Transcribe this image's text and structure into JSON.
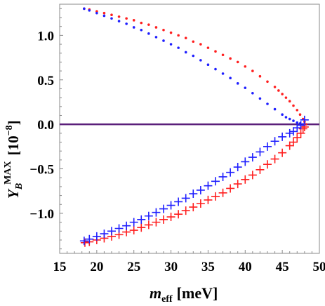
{
  "chart_data": {
    "type": "scatter",
    "title": "",
    "xlabel": {
      "main": "m",
      "subscript": "eff",
      "unit": "[meV]"
    },
    "ylabel": {
      "main": "Y",
      "subscript": "B",
      "superscript": "MAX",
      "unit": "[10",
      "unit_exponent": "−8",
      "unit_close": "]"
    },
    "xlim": [
      15,
      50
    ],
    "ylim": [
      -1.45,
      1.35
    ],
    "xticks": [
      "15",
      "20",
      "25",
      "30",
      "35",
      "40",
      "45",
      "50"
    ],
    "xtick_values": [
      15,
      20,
      25,
      30,
      35,
      40,
      45,
      50
    ],
    "yticks": [
      "1.0",
      "0.5",
      "0.0",
      "−0.5",
      "−1.0"
    ],
    "ytick_values": [
      1.0,
      0.5,
      0.0,
      -0.5,
      -1.0
    ],
    "reference_line": {
      "y": 0.0,
      "color": "#5b1f7a"
    },
    "grid": false,
    "legend": "none",
    "series": [
      {
        "marker": "dot",
        "color": "#ff1f1f",
        "x": [
          18.3,
          19.0,
          20.0,
          21.0,
          22.0,
          23.0,
          24.0,
          25.0,
          26.0,
          27.0,
          28.0,
          29.0,
          30.0,
          31.0,
          32.0,
          33.0,
          34.0,
          35.0,
          36.0,
          37.0,
          38.0,
          39.0,
          40.0,
          41.0,
          42.0,
          43.0,
          44.0,
          44.5,
          45.0,
          45.5,
          46.0,
          46.5,
          47.0,
          47.4,
          47.8,
          48.0,
          48.2
        ],
        "y": [
          1.3,
          1.29,
          1.27,
          1.25,
          1.23,
          1.21,
          1.19,
          1.17,
          1.14,
          1.12,
          1.09,
          1.06,
          1.03,
          1.0,
          0.97,
          0.93,
          0.9,
          0.86,
          0.82,
          0.78,
          0.74,
          0.7,
          0.65,
          0.6,
          0.54,
          0.48,
          0.42,
          0.38,
          0.34,
          0.3,
          0.26,
          0.21,
          0.16,
          0.11,
          0.06,
          0.03,
          0.0
        ]
      },
      {
        "marker": "dot",
        "color": "#1f1fff",
        "x": [
          18.3,
          19.0,
          20.0,
          21.0,
          22.0,
          23.0,
          24.0,
          25.0,
          26.0,
          27.0,
          28.0,
          29.0,
          30.0,
          31.0,
          32.0,
          33.0,
          34.0,
          35.0,
          36.0,
          37.0,
          38.0,
          39.0,
          40.0,
          41.0,
          42.0,
          43.0,
          44.0,
          45.0,
          45.5,
          46.0,
          46.5,
          47.0,
          47.4,
          47.8,
          48.0
        ],
        "y": [
          1.3,
          1.28,
          1.25,
          1.22,
          1.19,
          1.16,
          1.13,
          1.09,
          1.06,
          1.02,
          0.98,
          0.94,
          0.9,
          0.86,
          0.81,
          0.77,
          0.72,
          0.67,
          0.62,
          0.57,
          0.52,
          0.46,
          0.41,
          0.35,
          0.29,
          0.23,
          0.17,
          0.11,
          0.08,
          0.06,
          0.04,
          0.02,
          0.01,
          0.0,
          0.0
        ]
      },
      {
        "marker": "plus",
        "color": "#ff1f1f",
        "x": [
          18.4,
          19.0,
          20.0,
          21.0,
          22.0,
          23.0,
          24.0,
          25.0,
          26.0,
          27.0,
          28.0,
          29.0,
          30.0,
          31.0,
          32.0,
          33.0,
          34.0,
          35.0,
          36.0,
          37.0,
          38.0,
          39.0,
          40.0,
          41.0,
          42.0,
          43.0,
          44.0,
          45.0,
          46.0,
          46.5,
          47.0,
          47.5,
          47.8,
          48.0
        ],
        "y": [
          -1.33,
          -1.32,
          -1.3,
          -1.28,
          -1.26,
          -1.24,
          -1.21,
          -1.19,
          -1.16,
          -1.13,
          -1.1,
          -1.07,
          -1.04,
          -1.01,
          -0.97,
          -0.93,
          -0.89,
          -0.85,
          -0.81,
          -0.77,
          -0.72,
          -0.67,
          -0.62,
          -0.57,
          -0.51,
          -0.45,
          -0.39,
          -0.32,
          -0.24,
          -0.2,
          -0.15,
          -0.1,
          -0.05,
          -0.03
        ]
      },
      {
        "marker": "plus",
        "color": "#1f1fff",
        "x": [
          18.3,
          19.0,
          20.0,
          21.0,
          22.0,
          23.0,
          24.0,
          25.0,
          26.0,
          27.0,
          28.0,
          29.0,
          30.0,
          31.0,
          32.0,
          33.0,
          34.0,
          35.0,
          36.0,
          37.0,
          38.0,
          39.0,
          40.0,
          41.0,
          42.0,
          43.0,
          44.0,
          45.0,
          46.0,
          46.5,
          47.0,
          47.5,
          48.0
        ],
        "y": [
          -1.31,
          -1.29,
          -1.26,
          -1.23,
          -1.2,
          -1.17,
          -1.14,
          -1.1,
          -1.07,
          -1.03,
          -0.99,
          -0.95,
          -0.91,
          -0.87,
          -0.83,
          -0.78,
          -0.74,
          -0.69,
          -0.64,
          -0.59,
          -0.54,
          -0.48,
          -0.42,
          -0.37,
          -0.31,
          -0.25,
          -0.19,
          -0.14,
          -0.1,
          -0.08,
          -0.04,
          -0.01,
          0.05
        ]
      }
    ]
  }
}
